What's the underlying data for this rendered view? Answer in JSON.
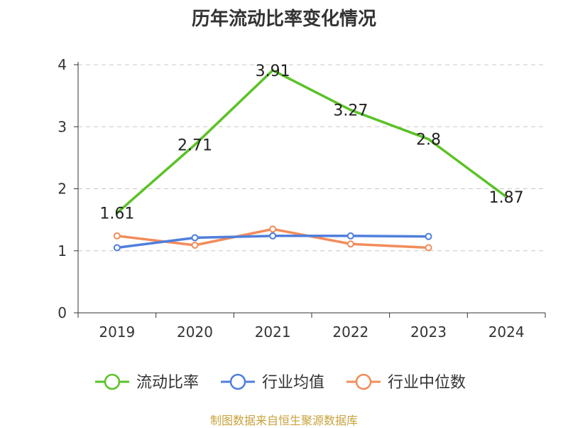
{
  "chart_data": {
    "type": "line",
    "title": "历年流动比率变化情况",
    "categories": [
      "2019",
      "2020",
      "2021",
      "2022",
      "2023",
      "2024"
    ],
    "ylim": [
      0,
      4
    ],
    "yticks": [
      0,
      1,
      2,
      3,
      4
    ],
    "grid": true,
    "legend_position": "bottom",
    "series": [
      {
        "name": "流动比率",
        "color": "#5bc226",
        "values": [
          1.61,
          2.71,
          3.91,
          3.27,
          2.8,
          1.87
        ],
        "labels": [
          "1.61",
          "2.71",
          "3.91",
          "3.27",
          "2.8",
          "1.87"
        ]
      },
      {
        "name": "行业均值",
        "color": "#4f7fdc",
        "values": [
          1.05,
          1.21,
          1.24,
          1.24,
          1.23,
          null
        ]
      },
      {
        "name": "行业中位数",
        "color": "#f28c5a",
        "values": [
          1.24,
          1.09,
          1.35,
          1.11,
          1.05,
          null
        ]
      }
    ]
  },
  "source": "制图数据来自恒生聚源数据库"
}
